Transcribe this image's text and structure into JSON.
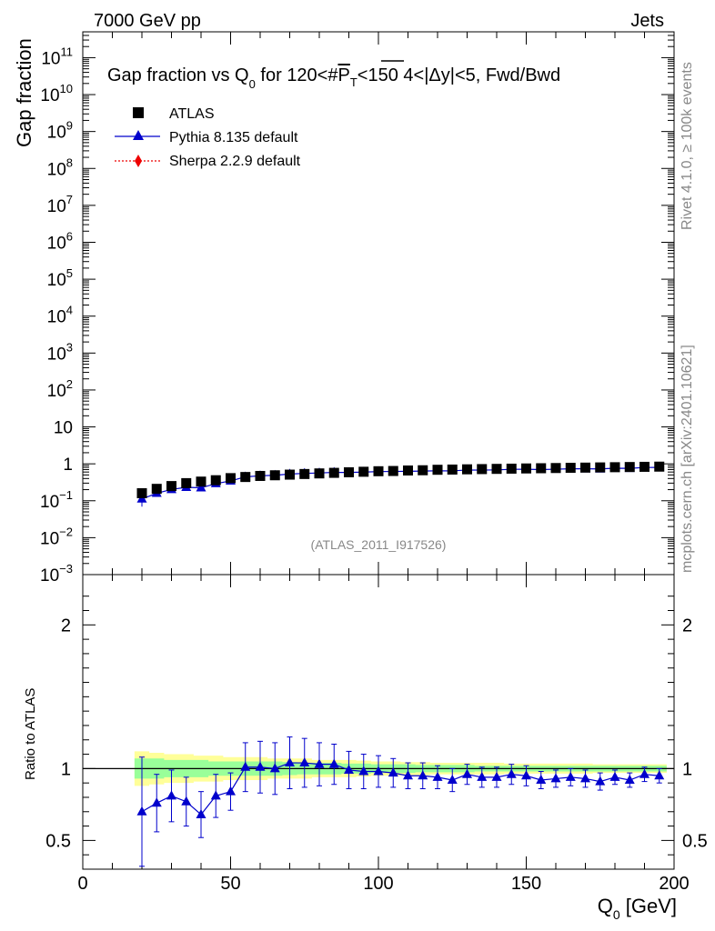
{
  "header": {
    "left": "7000 GeV pp",
    "right": "Jets"
  },
  "side": {
    "rivet": "Rivet 4.1.0, ≥ 100k events",
    "mcplots": "mcplots.cern.ch [arXiv:2401.10621]"
  },
  "chart_data": {
    "type": "line",
    "title": {
      "pre": "Gap fraction vs Q",
      "sub": "0",
      "mid": " for 120<#",
      "over": "P",
      "sub2": "T",
      "post": "<150  4<|Δy|<5, Fwd/Bwd"
    },
    "ylabel": "Gap fraction",
    "ratio_ylabel": "Ratio to ATLAS",
    "xlabel": {
      "pre": "Q",
      "sub": "0",
      "post": " [GeV]"
    },
    "analysis_id": "(ATLAS_2011_I917526)",
    "xlim": [
      0,
      200
    ],
    "ylim_log10": [
      -3,
      11.7
    ],
    "ratio_ylim": [
      0.3,
      2.35
    ],
    "x_ticks": [
      "0",
      "50",
      "100",
      "150",
      "200"
    ],
    "y_ticks": [
      {
        "exp": -3,
        "b": "10",
        "s": "−3"
      },
      {
        "exp": -2,
        "b": "10",
        "s": "−2"
      },
      {
        "exp": -1,
        "b": "10",
        "s": "−1"
      },
      {
        "exp": 0,
        "b": "1",
        "s": ""
      },
      {
        "exp": 1,
        "b": "10",
        "s": ""
      },
      {
        "exp": 2,
        "b": "10",
        "s": "2"
      },
      {
        "exp": 3,
        "b": "10",
        "s": "3"
      },
      {
        "exp": 4,
        "b": "10",
        "s": "4"
      },
      {
        "exp": 5,
        "b": "10",
        "s": "5"
      },
      {
        "exp": 6,
        "b": "10",
        "s": "6"
      },
      {
        "exp": 7,
        "b": "10",
        "s": "7"
      },
      {
        "exp": 8,
        "b": "10",
        "s": "8"
      },
      {
        "exp": 9,
        "b": "10",
        "s": "9"
      },
      {
        "exp": 10,
        "b": "10",
        "s": "10"
      },
      {
        "exp": 11,
        "b": "10",
        "s": "11"
      }
    ],
    "ratio_ticks": [
      {
        "v": 0.5,
        "t": "0.5"
      },
      {
        "v": 1,
        "t": "1"
      },
      {
        "v": 2,
        "t": "2"
      }
    ],
    "legend": [
      {
        "name": "ATLAS",
        "marker": "square",
        "color": "#000000"
      },
      {
        "name": "Pythia 8.135 default",
        "marker": "triangle",
        "color": "#0000cc"
      },
      {
        "name": "Sherpa 2.2.9 default",
        "marker": "diamond",
        "color": "#ee0000"
      }
    ],
    "x": [
      20,
      25,
      30,
      35,
      40,
      45,
      50,
      55,
      60,
      65,
      70,
      75,
      80,
      85,
      90,
      95,
      100,
      105,
      110,
      115,
      120,
      125,
      130,
      135,
      140,
      145,
      150,
      155,
      160,
      165,
      170,
      175,
      180,
      185,
      190,
      195
    ],
    "atlas": [
      0.16,
      0.21,
      0.25,
      0.3,
      0.33,
      0.36,
      0.41,
      0.44,
      0.47,
      0.49,
      0.51,
      0.53,
      0.55,
      0.57,
      0.59,
      0.61,
      0.63,
      0.64,
      0.66,
      0.67,
      0.69,
      0.7,
      0.71,
      0.72,
      0.73,
      0.74,
      0.75,
      0.76,
      0.77,
      0.78,
      0.79,
      0.8,
      0.81,
      0.82,
      0.83,
      0.84
    ],
    "pythia_ratio": [
      0.7,
      0.76,
      0.81,
      0.77,
      0.68,
      0.81,
      0.84,
      1.01,
      1.01,
      1.0,
      1.04,
      1.04,
      1.03,
      1.03,
      0.99,
      0.98,
      0.98,
      0.97,
      0.95,
      0.95,
      0.94,
      0.92,
      0.96,
      0.94,
      0.94,
      0.96,
      0.95,
      0.92,
      0.93,
      0.94,
      0.93,
      0.91,
      0.94,
      0.92,
      0.96,
      0.95
    ],
    "pythia_err": [
      0.38,
      0.2,
      0.18,
      0.17,
      0.16,
      0.15,
      0.13,
      0.17,
      0.18,
      0.18,
      0.18,
      0.17,
      0.15,
      0.14,
      0.13,
      0.12,
      0.11,
      0.1,
      0.09,
      0.09,
      0.08,
      0.08,
      0.07,
      0.07,
      0.07,
      0.07,
      0.07,
      0.06,
      0.06,
      0.06,
      0.06,
      0.06,
      0.05,
      0.05,
      0.05,
      0.05
    ],
    "band_x": [
      17.5,
      22.5,
      27.5,
      32.5,
      37.5,
      42.5,
      47.5,
      52.5,
      57.5,
      62.5,
      67.5,
      72.5,
      77.5,
      82.5,
      87.5,
      92.5,
      97.5,
      102.5,
      107.5,
      112.5,
      117.5,
      122.5,
      127.5,
      132.5,
      137.5,
      142.5,
      147.5,
      152.5,
      157.5,
      162.5,
      167.5,
      172.5,
      177.5,
      182.5,
      187.5,
      192.5,
      197.5
    ],
    "band_stat": [
      0.07,
      0.07,
      0.06,
      0.06,
      0.06,
      0.05,
      0.05,
      0.05,
      0.05,
      0.05,
      0.045,
      0.04,
      0.04,
      0.04,
      0.035,
      0.035,
      0.03,
      0.03,
      0.03,
      0.025,
      0.025,
      0.025,
      0.025,
      0.02,
      0.02,
      0.02,
      0.02,
      0.02,
      0.02,
      0.02,
      0.02,
      0.02,
      0.02,
      0.02,
      0.02,
      0.02
    ],
    "band_tot": [
      0.12,
      0.11,
      0.1,
      0.1,
      0.09,
      0.09,
      0.08,
      0.08,
      0.08,
      0.07,
      0.07,
      0.07,
      0.06,
      0.06,
      0.06,
      0.055,
      0.05,
      0.05,
      0.045,
      0.045,
      0.04,
      0.04,
      0.04,
      0.04,
      0.04,
      0.035,
      0.035,
      0.035,
      0.035,
      0.035,
      0.035,
      0.03,
      0.03,
      0.03,
      0.03,
      0.03
    ]
  }
}
